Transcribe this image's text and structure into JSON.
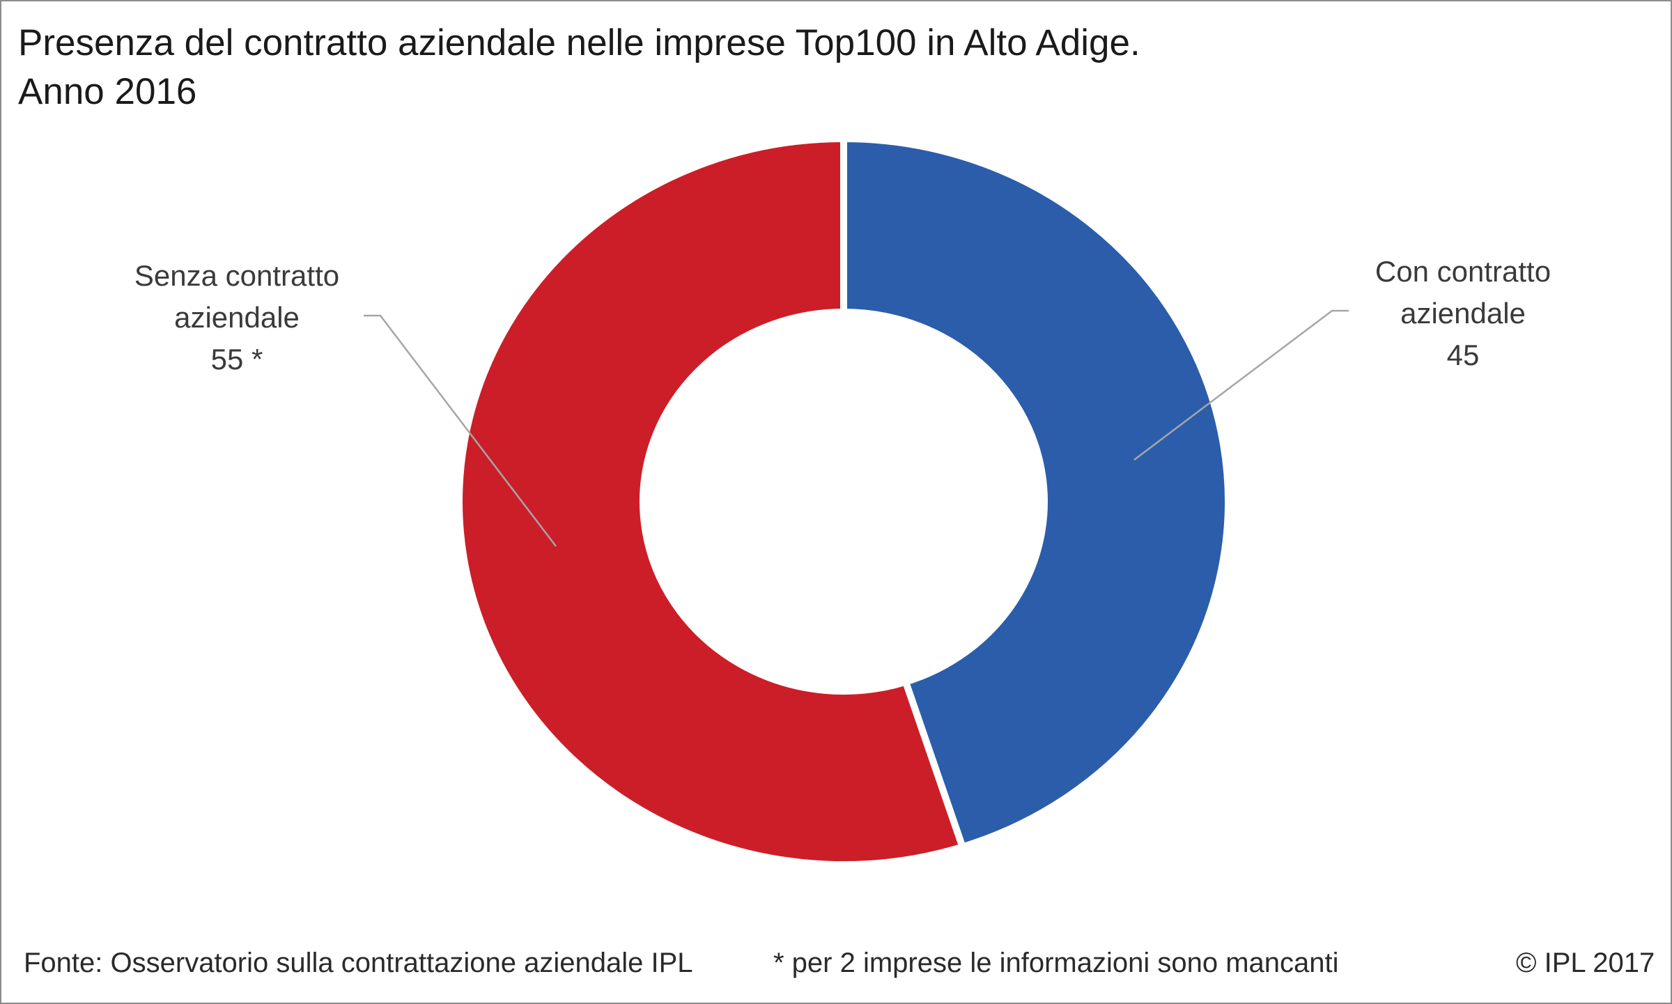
{
  "chart_data": {
    "type": "pie",
    "variant": "donut",
    "title": "Presenza del contratto aziendale nelle imprese Top100 in Alto Adige.",
    "subtitle": "Anno 2016",
    "legend": "none",
    "slices": [
      {
        "label_lines": [
          "Con contratto",
          "aziendale",
          "45"
        ],
        "value": 45,
        "color": "#2b5dab"
      },
      {
        "label_lines": [
          "Senza contratto",
          "aziendale",
          "55 *"
        ],
        "value": 55,
        "color": "#cc1e28"
      }
    ]
  },
  "footer": {
    "source": "Fonte: Osservatorio sulla contrattazione aziendale IPL",
    "note": "* per 2 imprese le informazioni sono mancanti",
    "copyright": "© IPL 2017"
  }
}
